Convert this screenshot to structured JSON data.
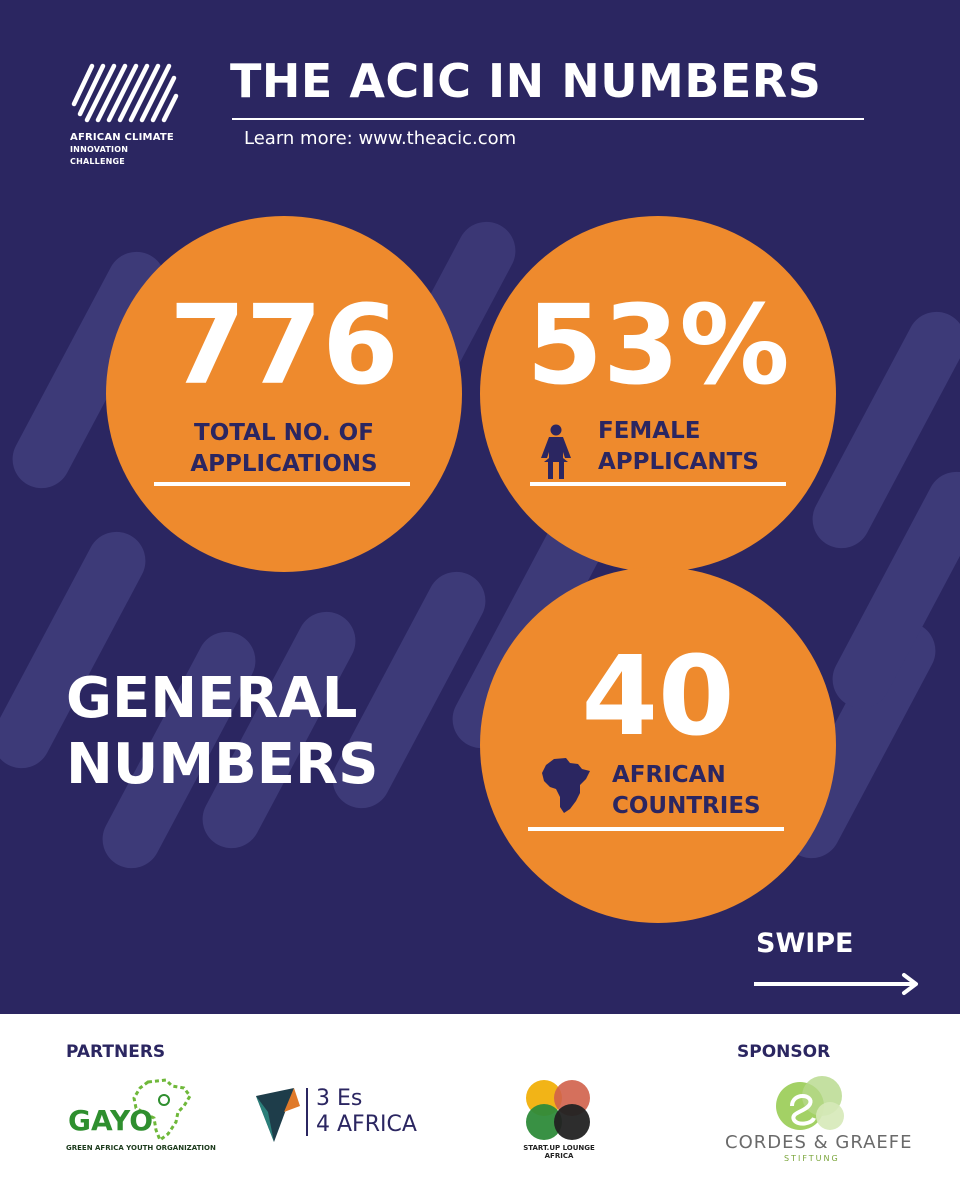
{
  "header": {
    "logo_line1": "AFRICAN CLIMATE",
    "logo_line2": "INNOVATION CHALLENGE",
    "title": "THE ACIC IN NUMBERS",
    "learn_more": "Learn more: www.theacic.com"
  },
  "stats": [
    {
      "number": "776",
      "label_line1": "TOTAL NO. OF",
      "label_line2": "APPLICATIONS",
      "icon": "document-icon"
    },
    {
      "number": "53%",
      "label_line1": "FEMALE",
      "label_line2": "APPLICANTS",
      "icon": "female-icon"
    },
    {
      "number": "40",
      "label_line1": "AFRICAN",
      "label_line2": "COUNTRIES",
      "icon": "africa-map-icon"
    }
  ],
  "section": {
    "line1": "GENERAL",
    "line2": "NUMBERS"
  },
  "swipe": {
    "label": "SWIPE",
    "icon": "arrow-right-icon"
  },
  "footer": {
    "partners_heading": "PARTNERS",
    "sponsor_heading": "SPONSOR",
    "gayo_word": "GAYO",
    "gayo_sub": "GREEN AFRICA YOUTH ORGANIZATION",
    "es_line1": "3 Es",
    "es_line2": "4 AFRICA",
    "sul_line1": "START.UP LOUNGE",
    "sul_line2": "AFRICA",
    "cg_name": "CORDES & GRAEFE",
    "cg_sub": "STIFTUNG"
  },
  "colors": {
    "background": "#2b2661",
    "accent": "#ee8a2d",
    "text": "#ffffff"
  }
}
